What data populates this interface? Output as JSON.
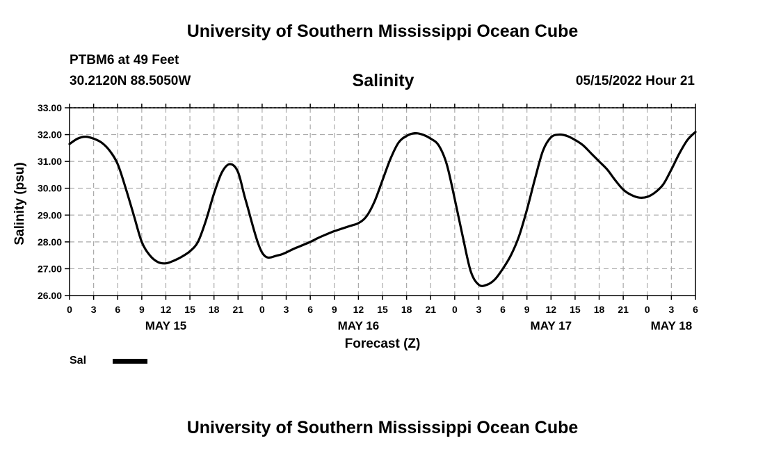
{
  "header": {
    "title": "University of Southern Mississippi Ocean Cube",
    "station": "PTBM6 at 49 Feet",
    "coordinates": "30.2120N  88.5050W",
    "datetime": "05/15/2022 Hour 21"
  },
  "footer": {
    "title": "University of Southern Mississippi Ocean Cube"
  },
  "legend": {
    "label": "Sal",
    "color": "#000000"
  },
  "chart_data": {
    "type": "line",
    "title": "Salinity",
    "xlabel": "Forecast (Z)",
    "ylabel": "Salinity (psu)",
    "xlim": [
      0,
      78
    ],
    "ylim": [
      26,
      33
    ],
    "x_tick_step_hours": 3,
    "x_tick_labels": [
      "0",
      "3",
      "6",
      "9",
      "12",
      "15",
      "18",
      "21",
      "0",
      "3",
      "6",
      "9",
      "12",
      "15",
      "18",
      "21",
      "0",
      "3",
      "6",
      "9",
      "12",
      "15",
      "18",
      "21",
      "0",
      "3",
      "6"
    ],
    "y_tick_labels": [
      "26.00",
      "27.00",
      "28.00",
      "29.00",
      "30.00",
      "31.00",
      "32.00",
      "33.00"
    ],
    "day_labels": [
      {
        "text": "MAY 15",
        "hour": 12
      },
      {
        "text": "MAY 16",
        "hour": 36
      },
      {
        "text": "MAY 17",
        "hour": 60
      },
      {
        "text": "MAY 18",
        "hour": 75
      }
    ],
    "grid": true,
    "series": [
      {
        "name": "Sal",
        "color": "#000000",
        "x": [
          0,
          1,
          2,
          3,
          4,
          5,
          6,
          7,
          8,
          9,
          10,
          11,
          12,
          13,
          14,
          15,
          16,
          17,
          18,
          19,
          20,
          21,
          22,
          24,
          26,
          28,
          30,
          31,
          32,
          33,
          34,
          35,
          36,
          37,
          38,
          39,
          40,
          41,
          42,
          43,
          44,
          45,
          46,
          47,
          48,
          49,
          50,
          51,
          52,
          53,
          54,
          55,
          56,
          57,
          58,
          59,
          60,
          61,
          62,
          63,
          64,
          65,
          66,
          67,
          68,
          69,
          70,
          71,
          72,
          73,
          74,
          75,
          76,
          77,
          78
        ],
        "values": [
          31.65,
          31.85,
          31.92,
          31.85,
          31.7,
          31.4,
          30.9,
          30.0,
          29.0,
          28.0,
          27.5,
          27.25,
          27.2,
          27.3,
          27.45,
          27.65,
          28.0,
          28.8,
          29.8,
          30.6,
          30.9,
          30.6,
          29.5,
          27.6,
          27.5,
          27.75,
          28.0,
          28.15,
          28.28,
          28.4,
          28.5,
          28.6,
          28.7,
          28.95,
          29.5,
          30.3,
          31.1,
          31.7,
          31.95,
          32.05,
          32.0,
          31.85,
          31.6,
          30.9,
          29.6,
          28.2,
          26.9,
          26.4,
          26.4,
          26.6,
          27.0,
          27.5,
          28.2,
          29.2,
          30.35,
          31.4,
          31.9,
          32.0,
          31.95,
          31.8,
          31.6,
          31.3,
          31.0,
          30.7,
          30.3,
          29.95,
          29.75,
          29.65,
          29.68,
          29.85,
          30.15,
          30.7,
          31.3,
          31.8,
          32.1
        ]
      }
    ]
  }
}
